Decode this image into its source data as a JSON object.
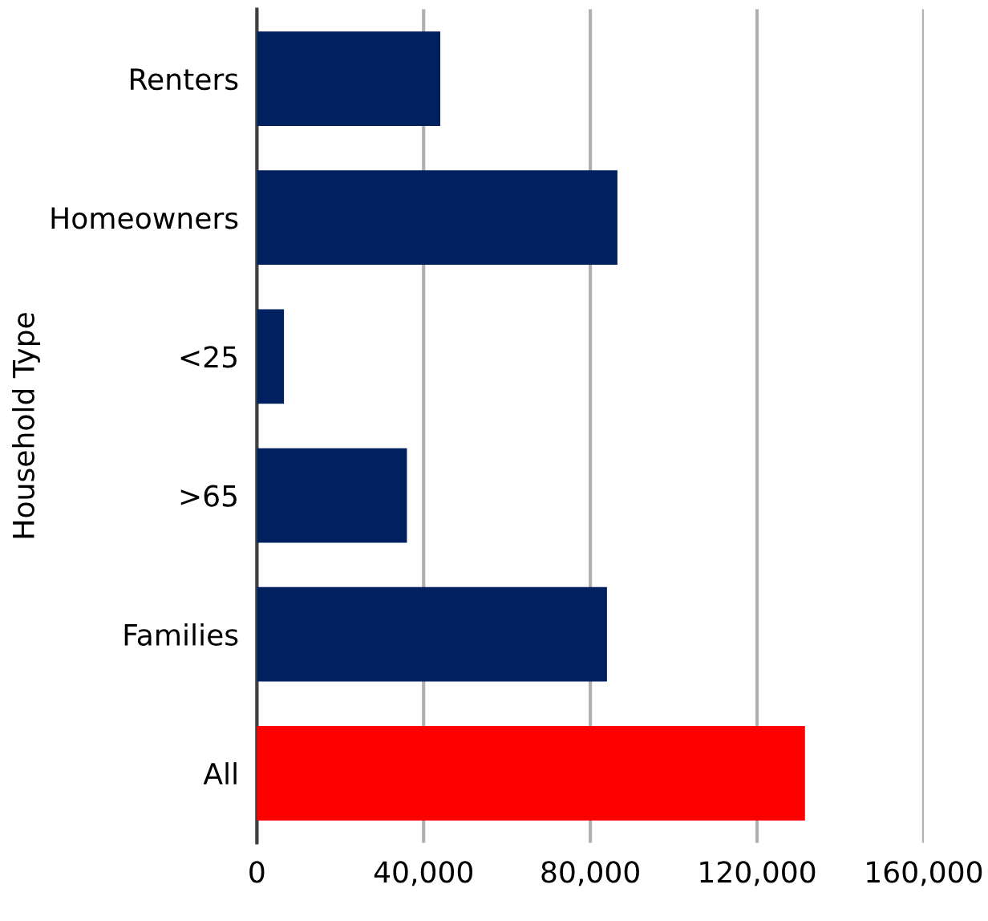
{
  "chart_data": {
    "type": "bar",
    "orientation": "horizontal",
    "ylabel": "Household Type",
    "categories": [
      "Renters",
      "Homeowners",
      "<25",
      ">65",
      "Families",
      "All"
    ],
    "values": [
      44000,
      86500,
      6500,
      36000,
      84000,
      131500
    ],
    "colors": [
      "#002060",
      "#002060",
      "#002060",
      "#002060",
      "#002060",
      "#ff0000"
    ],
    "xlim": [
      0,
      160000
    ],
    "xticks": [
      {
        "value": 0,
        "label": "0"
      },
      {
        "value": 40000,
        "label": "40,000"
      },
      {
        "value": 80000,
        "label": "80,000"
      },
      {
        "value": 120000,
        "label": "120,000"
      },
      {
        "value": 160000,
        "label": "160,000"
      }
    ],
    "grid": "x"
  }
}
